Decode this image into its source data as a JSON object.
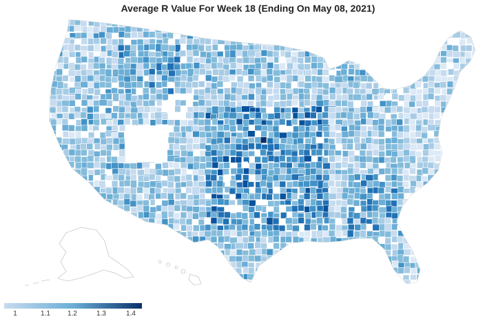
{
  "title": "Average R Value For Week 18 (Ending On May 08, 2021)",
  "legend": {
    "min": 1,
    "max": 1.45,
    "ticks": [
      "1",
      "1.1",
      "1.2",
      "1.3",
      "1.4"
    ],
    "tick_values": [
      1,
      1.1,
      1.2,
      1.3,
      1.4
    ],
    "color_low": "#c6dbef",
    "color_high": "#08306b"
  },
  "colors": {
    "no_data": "#ffffff",
    "border": "#ffffff",
    "inset_outline": "#c8c8c8"
  }
}
